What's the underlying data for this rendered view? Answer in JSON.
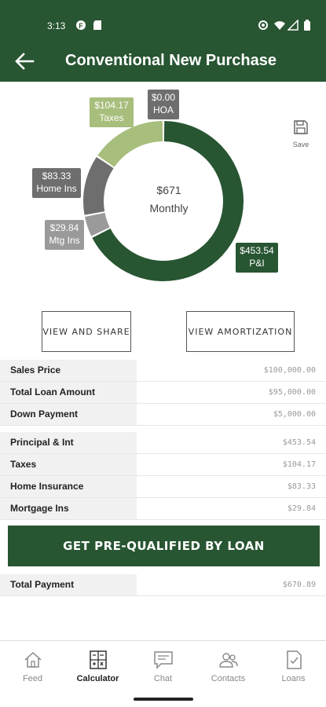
{
  "status_bar": {
    "time": "3:13"
  },
  "app_bar": {
    "title": "Conventional New Purchase"
  },
  "chart_data": {
    "type": "pie",
    "style": "donut",
    "center_value": "$671",
    "center_label": "Monthly",
    "slices": [
      {
        "name": "P&I",
        "display_value": "$453.54",
        "value": 453.54,
        "color": "#285532"
      },
      {
        "name": "Mtg Ins",
        "display_value": "$29.84",
        "value": 29.84,
        "color": "#9a9a9a"
      },
      {
        "name": "Home Ins",
        "display_value": "$83.33",
        "value": 83.33,
        "color": "#6e6e6e"
      },
      {
        "name": "Taxes",
        "display_value": "$104.17",
        "value": 104.17,
        "color": "#a7be7c"
      },
      {
        "name": "HOA",
        "display_value": "$0.00",
        "value": 0,
        "color": "#6e6e6e"
      }
    ]
  },
  "save": {
    "label": "Save"
  },
  "buttons": {
    "share": "VIEW AND SHARE",
    "amortization": "VIEW AMORTIZATION"
  },
  "loan_table": [
    {
      "label": "Sales Price",
      "value": "$100,000.00"
    },
    {
      "label": "Total Loan Amount",
      "value": "$95,000.00"
    },
    {
      "label": "Down Payment",
      "value": "$5,000.00"
    }
  ],
  "payment_table": [
    {
      "label": "Principal & Int",
      "value": "$453.54"
    },
    {
      "label": "Taxes",
      "value": "$104.17"
    },
    {
      "label": "Home Insurance",
      "value": "$83.33"
    },
    {
      "label": "Mortgage Ins",
      "value": "$29.84"
    }
  ],
  "cta": {
    "label": "GET PRE-QUALIFIED BY LOAN"
  },
  "total": {
    "label": "Total Payment",
    "value": "$670.89"
  },
  "nav": [
    {
      "label": "Feed",
      "icon": "home-icon"
    },
    {
      "label": "Calculator",
      "icon": "calculator-icon",
      "active": true
    },
    {
      "label": "Chat",
      "icon": "chat-icon"
    },
    {
      "label": "Contacts",
      "icon": "contacts-icon"
    },
    {
      "label": "Loans",
      "icon": "loans-icon"
    }
  ]
}
